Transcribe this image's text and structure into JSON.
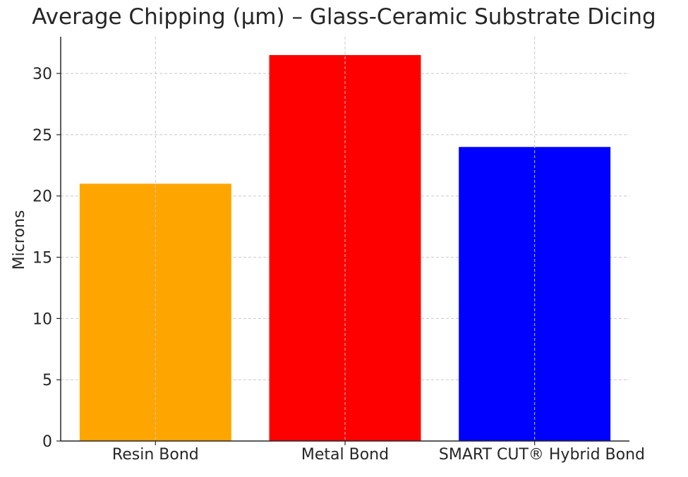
{
  "chart_data": {
    "type": "bar",
    "title": "Average Chipping (µm) – Glass-Ceramic Substrate Dicing",
    "xlabel": "",
    "ylabel": "Microns",
    "categories": [
      "Resin Bond",
      "Metal Bond",
      "SMART CUT® Hybrid Bond"
    ],
    "values": [
      21,
      31.5,
      24
    ],
    "colors": [
      "#ffa500",
      "#ff0000",
      "#0000ff"
    ],
    "ylim": [
      0,
      33
    ],
    "yticks": [
      0,
      5,
      10,
      15,
      20,
      25,
      30
    ],
    "grid": true,
    "grid_style": "dashed",
    "legend": "none"
  }
}
